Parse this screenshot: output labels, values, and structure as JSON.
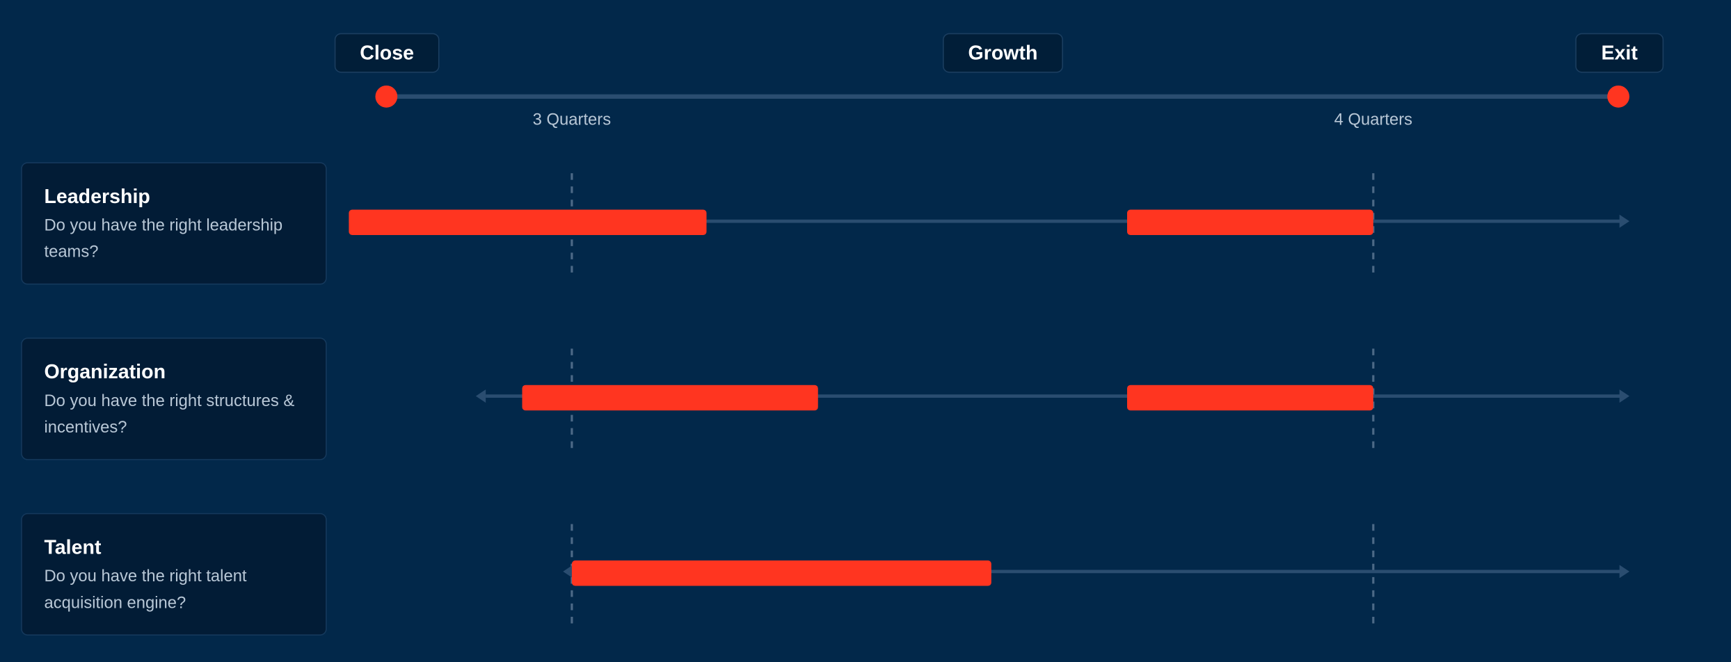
{
  "phases": {
    "close": "Close",
    "growth": "Growth",
    "exit": "Exit"
  },
  "axis": {
    "marker_left": "3 Quarters",
    "marker_right": "4 Quarters"
  },
  "rows": [
    {
      "title": "Leadership",
      "question": "Do you have the right leadership teams?",
      "left_arrow": false,
      "right_arrow": true,
      "segments": [
        [
          0,
          3.5
        ],
        [
          5.5,
          7.0
        ]
      ]
    },
    {
      "title": "Organization",
      "question": "Do you have the right structures & incentives?",
      "left_arrow": true,
      "right_arrow": true,
      "segments": [
        [
          2.7,
          4.4
        ],
        [
          5.5,
          7.0
        ]
      ]
    },
    {
      "title": "Talent",
      "question": "Do you have the right talent acquisition engine?",
      "left_arrow": true,
      "right_arrow": true,
      "segments": [
        [
          3.0,
          5.5
        ]
      ]
    }
  ],
  "colors": {
    "background": "#02284a",
    "accent": "#ff3520",
    "track": "#2a4d70",
    "marker": "#4d6a87"
  }
}
